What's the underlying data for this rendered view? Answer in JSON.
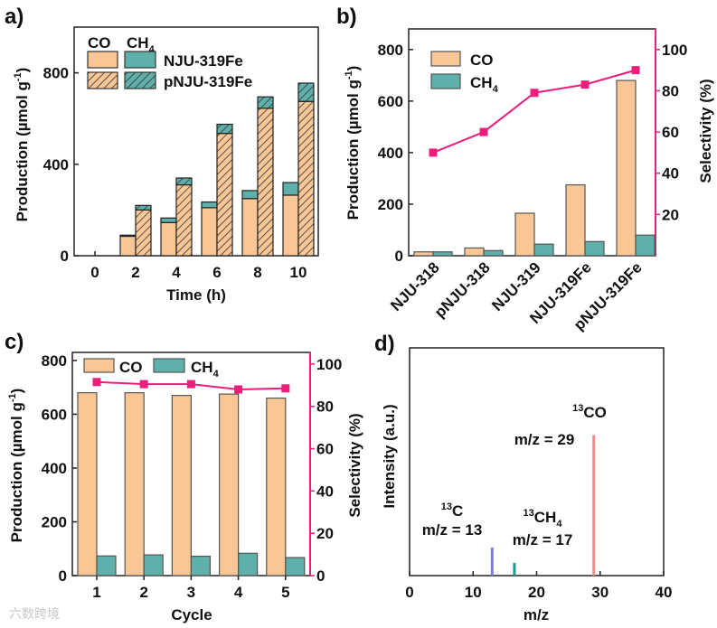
{
  "colors": {
    "co": "#f9c796",
    "ch4": "#5fb0aa",
    "bar_edge": "#444444",
    "selectivity": "#ee1c7a",
    "peak_c": "#7b7bf0",
    "peak_ch4": "#1e9a8e",
    "peak_co": "#f28a8a"
  },
  "watermark": "六数跨境",
  "chart_data": [
    {
      "panel": "a)",
      "type": "bar",
      "stacked": true,
      "xlabel": "Time (h)",
      "ylabel": {
        "main": "Production (µmol g",
        "sup": "-1",
        "end": ")"
      },
      "categories": [
        "0",
        "2",
        "4",
        "6",
        "8",
        "10"
      ],
      "x": [
        0,
        2,
        4,
        6,
        8,
        10
      ],
      "ylim": [
        0,
        1000
      ],
      "yticks": [
        0,
        400,
        800
      ],
      "legend": {
        "col_co": "CO",
        "col_ch4": "CH",
        "col_ch4_sub": "4",
        "rows": [
          "NJU-319Fe",
          "pNJU-319Fe"
        ],
        "placement": "top-left"
      },
      "series": [
        {
          "name": "NJU-319Fe",
          "co": [
            0,
            85,
            145,
            210,
            250,
            265
          ],
          "ch4": [
            0,
            5,
            20,
            25,
            35,
            55
          ],
          "hatched": false
        },
        {
          "name": "pNJU-319Fe",
          "co": [
            0,
            200,
            310,
            535,
            645,
            675
          ],
          "ch4": [
            0,
            20,
            30,
            40,
            50,
            80
          ],
          "hatched": true
        }
      ]
    },
    {
      "panel": "b)",
      "type": "bar",
      "ylabel": {
        "main": "Production (µmol g",
        "sup": "-1",
        "end": ")"
      },
      "y2label": "Selectivity (%)",
      "categories": [
        "NJU-318",
        "pNJU-318",
        "NJU-319",
        "NJU-319Fe",
        "pNJU-319Fe"
      ],
      "ylim": [
        0,
        880
      ],
      "yticks": [
        0,
        200,
        400,
        600,
        800
      ],
      "y2lim": [
        0,
        110
      ],
      "y2ticks": [
        20,
        40,
        60,
        80,
        100
      ],
      "legend": {
        "co": "CO",
        "ch4": "CH",
        "ch4_sub": "4",
        "placement": "top-left"
      },
      "series": [
        {
          "name": "CO",
          "values": [
            15,
            30,
            165,
            275,
            680
          ]
        },
        {
          "name": "CH4",
          "values": [
            15,
            20,
            45,
            55,
            80
          ]
        },
        {
          "name": "Selectivity",
          "type": "line",
          "axis": "right",
          "values": [
            50,
            60,
            79,
            83,
            90
          ]
        }
      ]
    },
    {
      "panel": "c)",
      "type": "bar",
      "xlabel": "Cycle",
      "ylabel": {
        "main": "Production (µmol g",
        "sup": "-1",
        "end": ")"
      },
      "y2label": "Selectivity (%)",
      "categories": [
        "1",
        "2",
        "3",
        "4",
        "5"
      ],
      "ylim": [
        0,
        830
      ],
      "yticks": [
        0,
        200,
        400,
        600,
        800
      ],
      "y2lim": [
        0,
        105.5
      ],
      "y2ticks": [
        0,
        20,
        40,
        60,
        80,
        100
      ],
      "legend": {
        "co": "CO",
        "ch4": "CH",
        "ch4_sub": "4",
        "placement": "top"
      },
      "series": [
        {
          "name": "CO",
          "values": [
            680,
            680,
            670,
            675,
            660
          ]
        },
        {
          "name": "CH4",
          "values": [
            73,
            77,
            72,
            83,
            67
          ]
        },
        {
          "name": "Selectivity",
          "type": "line",
          "axis": "right",
          "values": [
            91.5,
            90.5,
            90.5,
            88,
            88.5
          ]
        }
      ]
    },
    {
      "panel": "d)",
      "type": "bar",
      "xlabel": "m/z",
      "ylabel": "Intensity (a.u.)",
      "xlim": [
        0,
        40
      ],
      "xticks": [
        0,
        10,
        20,
        30,
        40
      ],
      "ylim": [
        0,
        162
      ],
      "peaks": [
        {
          "x": 13,
          "intensity": 20,
          "species": "C",
          "iso": "13",
          "sub": "",
          "label": "m/z = 13"
        },
        {
          "x": 16.5,
          "intensity": 9,
          "species": "CH",
          "iso": "13",
          "sub": "4",
          "label": "m/z = 17"
        },
        {
          "x": 29,
          "intensity": 100,
          "species": "CO",
          "iso": "13",
          "sub": "",
          "label": "m/z = 29"
        }
      ]
    }
  ]
}
